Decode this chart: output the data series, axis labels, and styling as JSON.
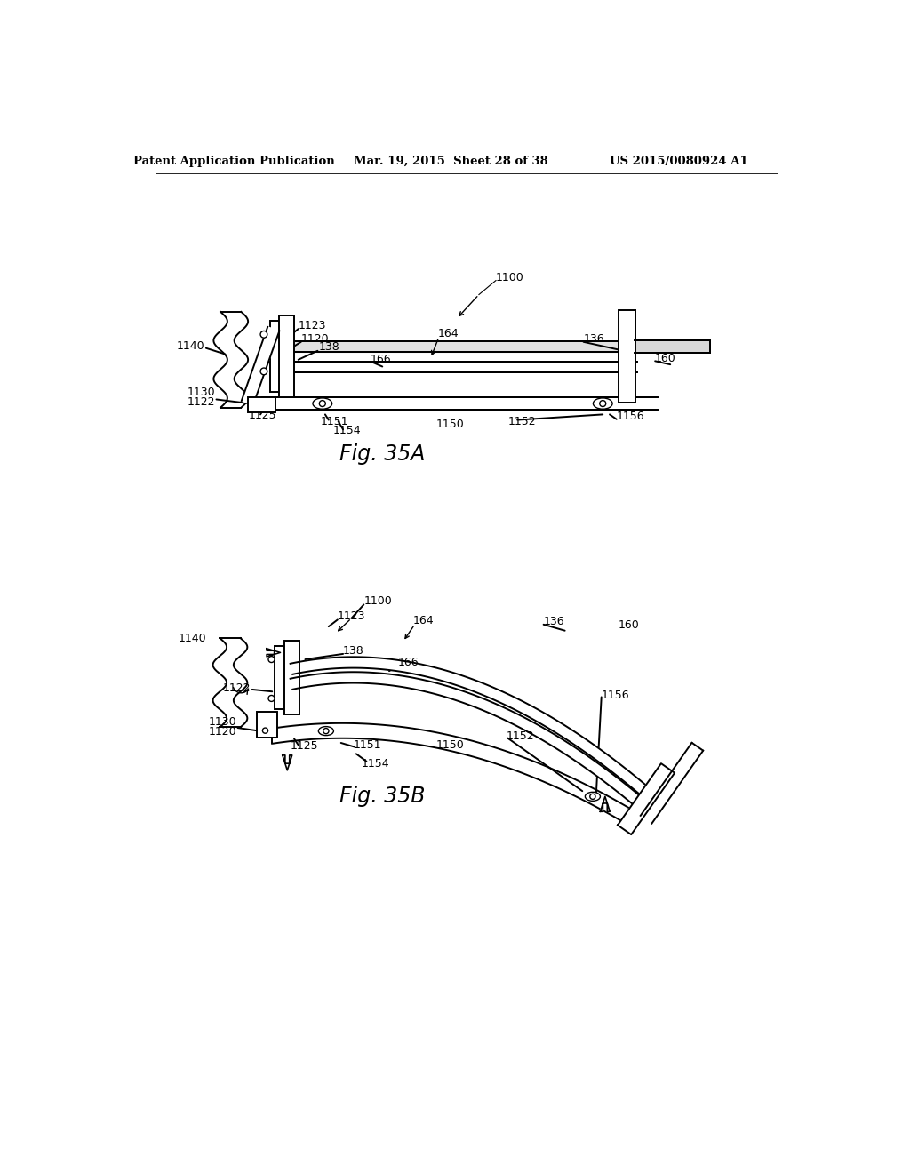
{
  "bg_color": "#ffffff",
  "header_left": "Patent Application Publication",
  "header_mid": "Mar. 19, 2015  Sheet 28 of 38",
  "header_right": "US 2015/0080924 A1",
  "fig_a_label": "Fig. 35A",
  "fig_b_label": "Fig. 35B"
}
